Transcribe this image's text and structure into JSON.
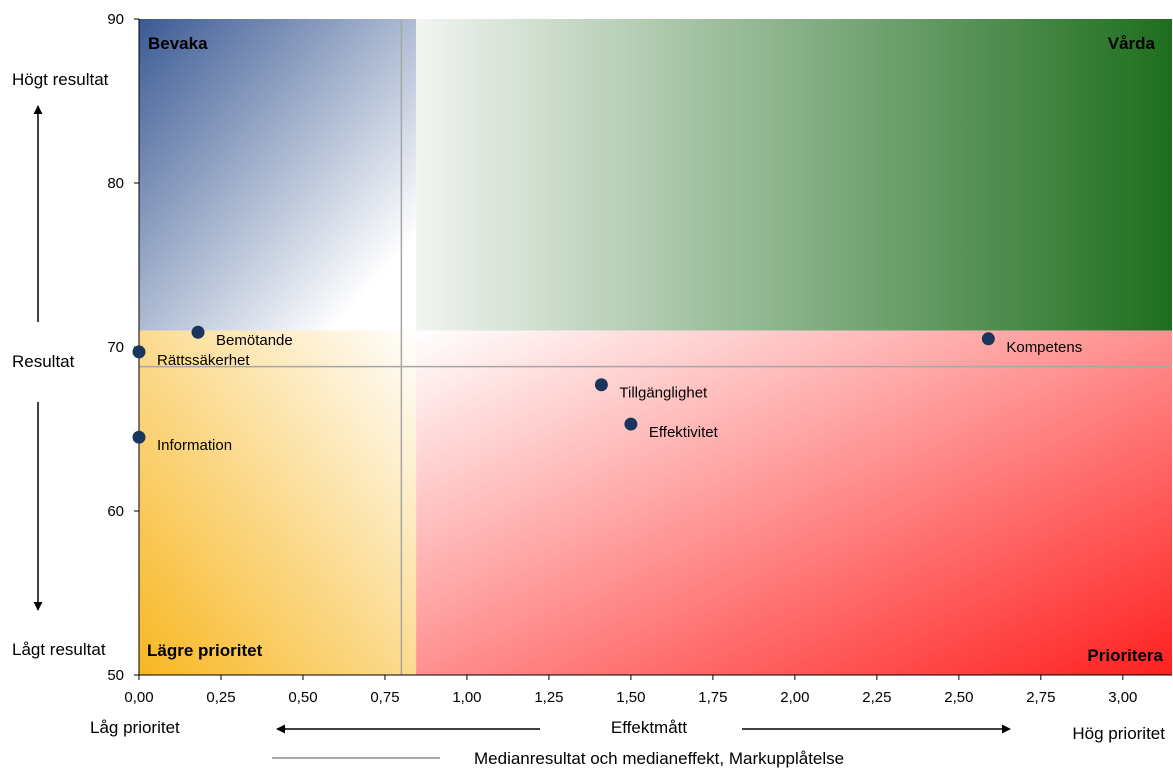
{
  "chart_data": {
    "type": "scatter",
    "xlabel": "Effektmått",
    "ylabel": "Resultat",
    "xlim": [
      0,
      3.15
    ],
    "ylim": [
      50,
      90
    ],
    "xticks": [
      0,
      0.25,
      0.5,
      0.75,
      1.0,
      1.25,
      1.5,
      1.75,
      2.0,
      2.25,
      2.5,
      2.75,
      3.0
    ],
    "xtick_labels": [
      "0,00",
      "0,25",
      "0,50",
      "0,75",
      "1,00",
      "1,25",
      "1,50",
      "1,75",
      "2,00",
      "2,25",
      "2,50",
      "2,75",
      "3,00"
    ],
    "yticks": [
      50,
      60,
      70,
      80,
      90
    ],
    "ytick_labels": [
      "50",
      "60",
      "70",
      "80",
      "90"
    ],
    "y_top_label": "Högt resultat",
    "y_bottom_label": "Lågt resultat",
    "x_left_label": "Låg prioritet",
    "x_right_label": "Hög prioritet",
    "median_x": 0.8,
    "median_y": 68.8,
    "quadrant_split_x": 0.845,
    "quadrant_split_y": 71,
    "quadrants": {
      "top_left": "Bevaka",
      "top_right": "Vårda",
      "bottom_left": "Lägre prioritet",
      "bottom_right": "Prioritera"
    },
    "colors": {
      "bevaka": "#3b5a94",
      "varda": "#1e6e1e",
      "lagre": "#f8b722",
      "prioritera": "#ff2020",
      "point": "#1b365d",
      "median_line": "#a6a6a6"
    },
    "legend_label": "Medianresultat och medianeffekt, Markupplåtelse",
    "points": [
      {
        "name": "Bemötande",
        "x": 0.18,
        "y": 70.9
      },
      {
        "name": "Rättssäkerhet",
        "x": 0.0,
        "y": 69.7
      },
      {
        "name": "Information",
        "x": 0.0,
        "y": 64.5
      },
      {
        "name": "Tillgänglighet",
        "x": 1.41,
        "y": 67.7
      },
      {
        "name": "Effektivitet",
        "x": 1.5,
        "y": 65.3
      },
      {
        "name": "Kompetens",
        "x": 2.59,
        "y": 70.5
      }
    ]
  }
}
